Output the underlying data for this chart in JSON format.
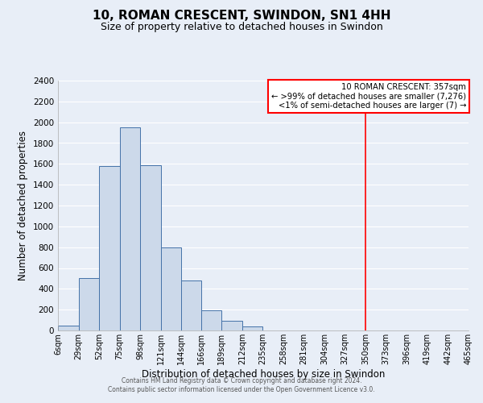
{
  "title": "10, ROMAN CRESCENT, SWINDON, SN1 4HH",
  "subtitle": "Size of property relative to detached houses in Swindon",
  "xlabel": "Distribution of detached houses by size in Swindon",
  "ylabel": "Number of detached properties",
  "bin_edges": [
    6,
    29,
    52,
    75,
    98,
    121,
    144,
    166,
    189,
    212,
    235,
    258,
    281,
    304,
    327,
    350,
    373,
    396,
    419,
    442,
    465
  ],
  "bar_heights": [
    50,
    500,
    1580,
    1950,
    1590,
    800,
    480,
    190,
    90,
    35,
    0,
    0,
    0,
    0,
    0,
    0,
    0,
    0,
    0,
    0
  ],
  "bar_color": "#ccd9ea",
  "bar_edgecolor": "#4472a8",
  "vline_x": 350,
  "vline_color": "red",
  "ylim": [
    0,
    2400
  ],
  "yticks": [
    0,
    200,
    400,
    600,
    800,
    1000,
    1200,
    1400,
    1600,
    1800,
    2000,
    2200,
    2400
  ],
  "xtick_labels": [
    "6sqm",
    "29sqm",
    "52sqm",
    "75sqm",
    "98sqm",
    "121sqm",
    "144sqm",
    "166sqm",
    "189sqm",
    "212sqm",
    "235sqm",
    "258sqm",
    "281sqm",
    "304sqm",
    "327sqm",
    "350sqm",
    "373sqm",
    "396sqm",
    "419sqm",
    "442sqm",
    "465sqm"
  ],
  "annotation_title": "10 ROMAN CRESCENT: 357sqm",
  "annotation_line1": "← >99% of detached houses are smaller (7,276)",
  "annotation_line2": "<1% of semi-detached houses are larger (7) →",
  "annotation_box_edgecolor": "red",
  "annotation_box_facecolor": "white",
  "footer_line1": "Contains HM Land Registry data © Crown copyright and database right 2024.",
  "footer_line2": "Contains public sector information licensed under the Open Government Licence v3.0.",
  "background_color": "#e8eef7",
  "plot_background": "#e8eef7",
  "grid_color": "#ffffff",
  "title_fontsize": 11,
  "subtitle_fontsize": 9
}
